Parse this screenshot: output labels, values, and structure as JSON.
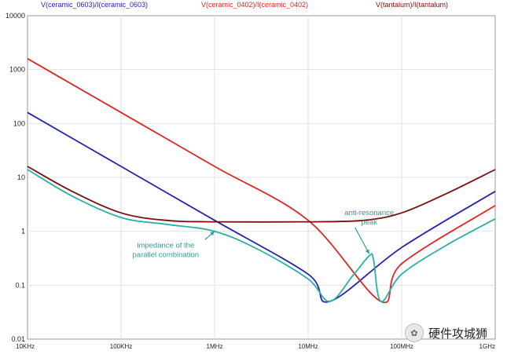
{
  "chart_data": {
    "type": "line",
    "x_scale": "log",
    "y_scale": "log",
    "xlim": [
      "10KHz",
      "1GHz"
    ],
    "ylim": [
      0.01,
      10000
    ],
    "x_ticks": [
      "10KHz",
      "100KHz",
      "1MHz",
      "10MHz",
      "100MHz",
      "1GHz"
    ],
    "y_ticks": [
      "10000",
      "1000",
      "100",
      "10",
      "1",
      "0.1",
      "0.01"
    ],
    "grid": true,
    "series": [
      {
        "name": "V(ceramic_0603)/I(ceramic_0603)",
        "color": "#2323b0",
        "x": [
          "10KHz",
          "100KHz",
          "1MHz",
          "10MHz",
          "17MHz",
          "100MHz",
          "1GHz"
        ],
        "y": [
          160,
          16,
          1.6,
          0.16,
          0.05,
          0.5,
          5.5
        ]
      },
      {
        "name": "V(ceramic_0402)/I(ceramic_0402)",
        "color": "#e02424",
        "x": [
          "10KHz",
          "100KHz",
          "1MHz",
          "10MHz",
          "60MHz",
          "100MHz",
          "1GHz"
        ],
        "y": [
          1600,
          160,
          16,
          1.6,
          0.05,
          0.25,
          3.0
        ]
      },
      {
        "name": "V(tantalum)/I(tantalum)",
        "color": "#7a0f0f",
        "x": [
          "10KHz",
          "30KHz",
          "100KHz",
          "300KHz",
          "1MHz",
          "10MHz",
          "40MHz",
          "100MHz",
          "300MHz",
          "1GHz"
        ],
        "y": [
          16,
          5.5,
          2.2,
          1.6,
          1.5,
          1.5,
          1.6,
          2.2,
          5,
          14
        ]
      },
      {
        "color": "#2ab0a8",
        "x": [
          "10KHz",
          "30KHz",
          "100KHz",
          "300KHz",
          "1MHz",
          "3MHz",
          "10MHz",
          "17MHz",
          "30MHz",
          "45MHz",
          "50MHz",
          "60MHz",
          "100MHz",
          "300MHz",
          "1GHz"
        ],
        "y": [
          14,
          4.5,
          1.8,
          1.35,
          1.0,
          0.45,
          0.13,
          0.05,
          0.15,
          0.35,
          0.3,
          0.05,
          0.16,
          0.55,
          1.7
        ]
      }
    ],
    "annotations": [
      {
        "lines": [
          "anti-resonance",
          "peak"
        ],
        "x": "45MHz",
        "y": 2.0,
        "arrow_to": {
          "x": "45MHz",
          "y": 0.38
        }
      },
      {
        "lines": [
          "impedance of the",
          "parallel combination"
        ],
        "x": "300KHz",
        "y": 0.5,
        "arrow_to": {
          "x": "1MHz",
          "y": 1.0
        }
      }
    ]
  },
  "watermark": {
    "text": "硬件攻城狮",
    "url_fragment": "https://blog.cs"
  }
}
